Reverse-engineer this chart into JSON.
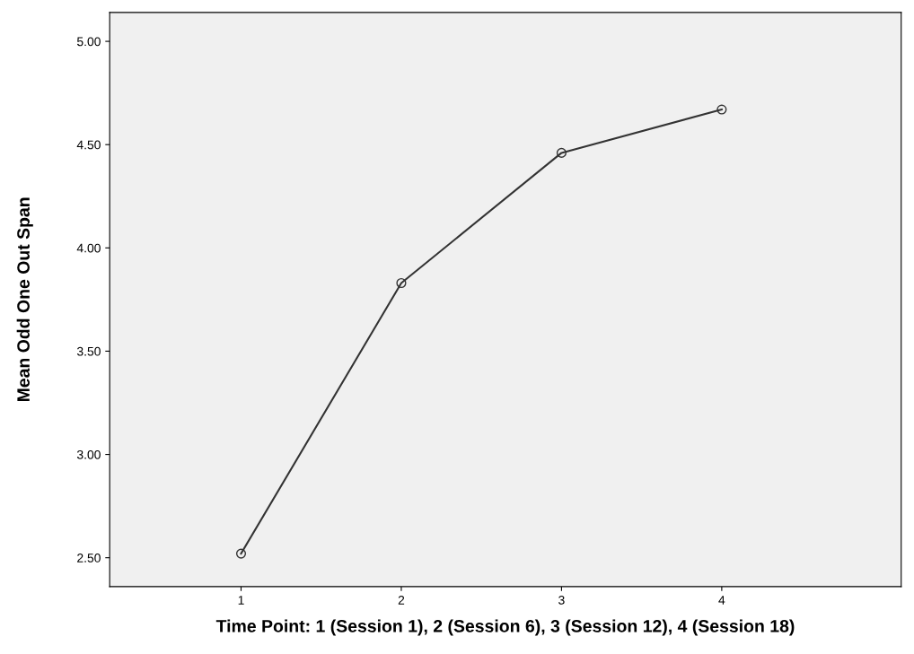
{
  "chart_data": {
    "type": "line",
    "xlabel": "Time Point: 1 (Session 1), 2 (Session 6), 3 (Session 12), 4 (Session 18)",
    "ylabel": "Mean Odd One Out Span",
    "x": [
      1,
      2,
      3,
      4
    ],
    "series": [
      {
        "color": "#333333",
        "values": [
          2.52,
          3.83,
          4.46,
          4.67
        ]
      }
    ],
    "xlim": [
      0.18,
      5.12
    ],
    "xticks": [
      1,
      2,
      3,
      4
    ],
    "ylim": [
      2.36,
      5.14
    ],
    "yticks": [
      {
        "value": 2.5,
        "label": "2.50"
      },
      {
        "value": 3.0,
        "label": "3.00"
      },
      {
        "value": 3.5,
        "label": "3.50"
      },
      {
        "value": 4.0,
        "label": "4.00"
      },
      {
        "value": 4.5,
        "label": "4.50"
      },
      {
        "value": 5.0,
        "label": "5.00"
      }
    ],
    "marker": "circle",
    "line_style": "solid",
    "grid": false,
    "legend": false
  }
}
